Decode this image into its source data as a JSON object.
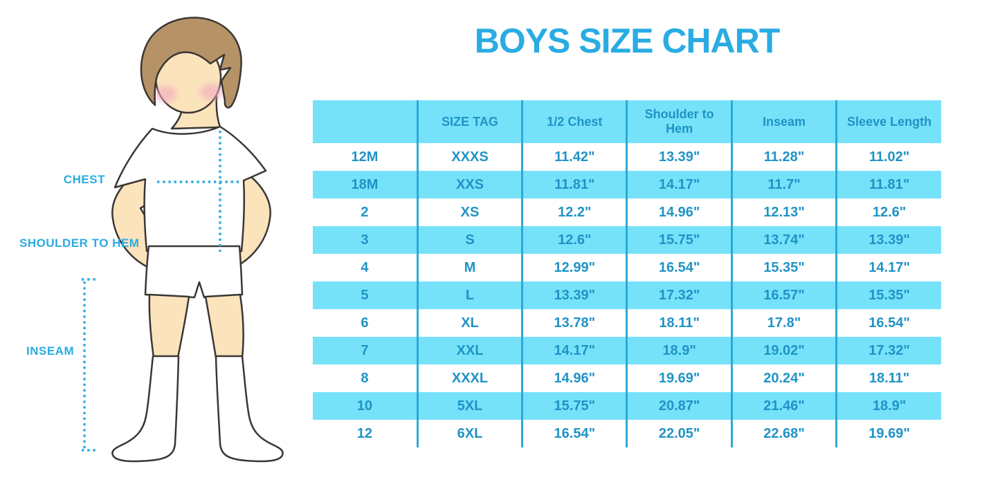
{
  "title": "BOYS SIZE CHART",
  "figure_labels": {
    "chest": "CHEST",
    "shoulder_to_hem": "SHOULDER TO HEM",
    "inseam": "INSEAM"
  },
  "colors": {
    "accent_blue": "#29ABE2",
    "table_text_blue": "#1F93C6",
    "stripe_blue": "#76E2F9",
    "grid_line_blue": "#2BA9D6",
    "skin": "#FBE3BC",
    "hair_brown": "#B69267",
    "cheek_pink": "#F2A8BE",
    "outline_dark": "#3A3633"
  },
  "chart_data": {
    "type": "table",
    "title": "BOYS SIZE CHART",
    "columns": [
      "",
      "SIZE TAG",
      "1/2 Chest",
      "Shoulder to Hem",
      "Inseam",
      "Sleeve Length"
    ],
    "rows": [
      [
        "12M",
        "XXXS",
        "11.42\"",
        "13.39\"",
        "11.28\"",
        "11.02\""
      ],
      [
        "18M",
        "XXS",
        "11.81\"",
        "14.17\"",
        "11.7\"",
        "11.81\""
      ],
      [
        "2",
        "XS",
        "12.2\"",
        "14.96\"",
        "12.13\"",
        "12.6\""
      ],
      [
        "3",
        "S",
        "12.6\"",
        "15.75\"",
        "13.74\"",
        "13.39\""
      ],
      [
        "4",
        "M",
        "12.99\"",
        "16.54\"",
        "15.35\"",
        "14.17\""
      ],
      [
        "5",
        "L",
        "13.39\"",
        "17.32\"",
        "16.57\"",
        "15.35\""
      ],
      [
        "6",
        "XL",
        "13.78\"",
        "18.11\"",
        "17.8\"",
        "16.54\""
      ],
      [
        "7",
        "XXL",
        "14.17\"",
        "18.9\"",
        "19.02\"",
        "17.32\""
      ],
      [
        "8",
        "XXXL",
        "14.96\"",
        "19.69\"",
        "20.24\"",
        "18.11\""
      ],
      [
        "10",
        "5XL",
        "15.75\"",
        "20.87\"",
        "21.46\"",
        "18.9\""
      ],
      [
        "12",
        "6XL",
        "16.54\"",
        "22.05\"",
        "22.68\"",
        "19.69\""
      ]
    ],
    "layout": {
      "striped_rows": true,
      "header_filled": true,
      "stripe_pattern": "header and even data rows light blue, others white",
      "grid": "vertical column dividers only",
      "annotations_left_of_table": [
        "CHEST",
        "SHOULDER TO HEM",
        "INSEAM"
      ]
    }
  }
}
